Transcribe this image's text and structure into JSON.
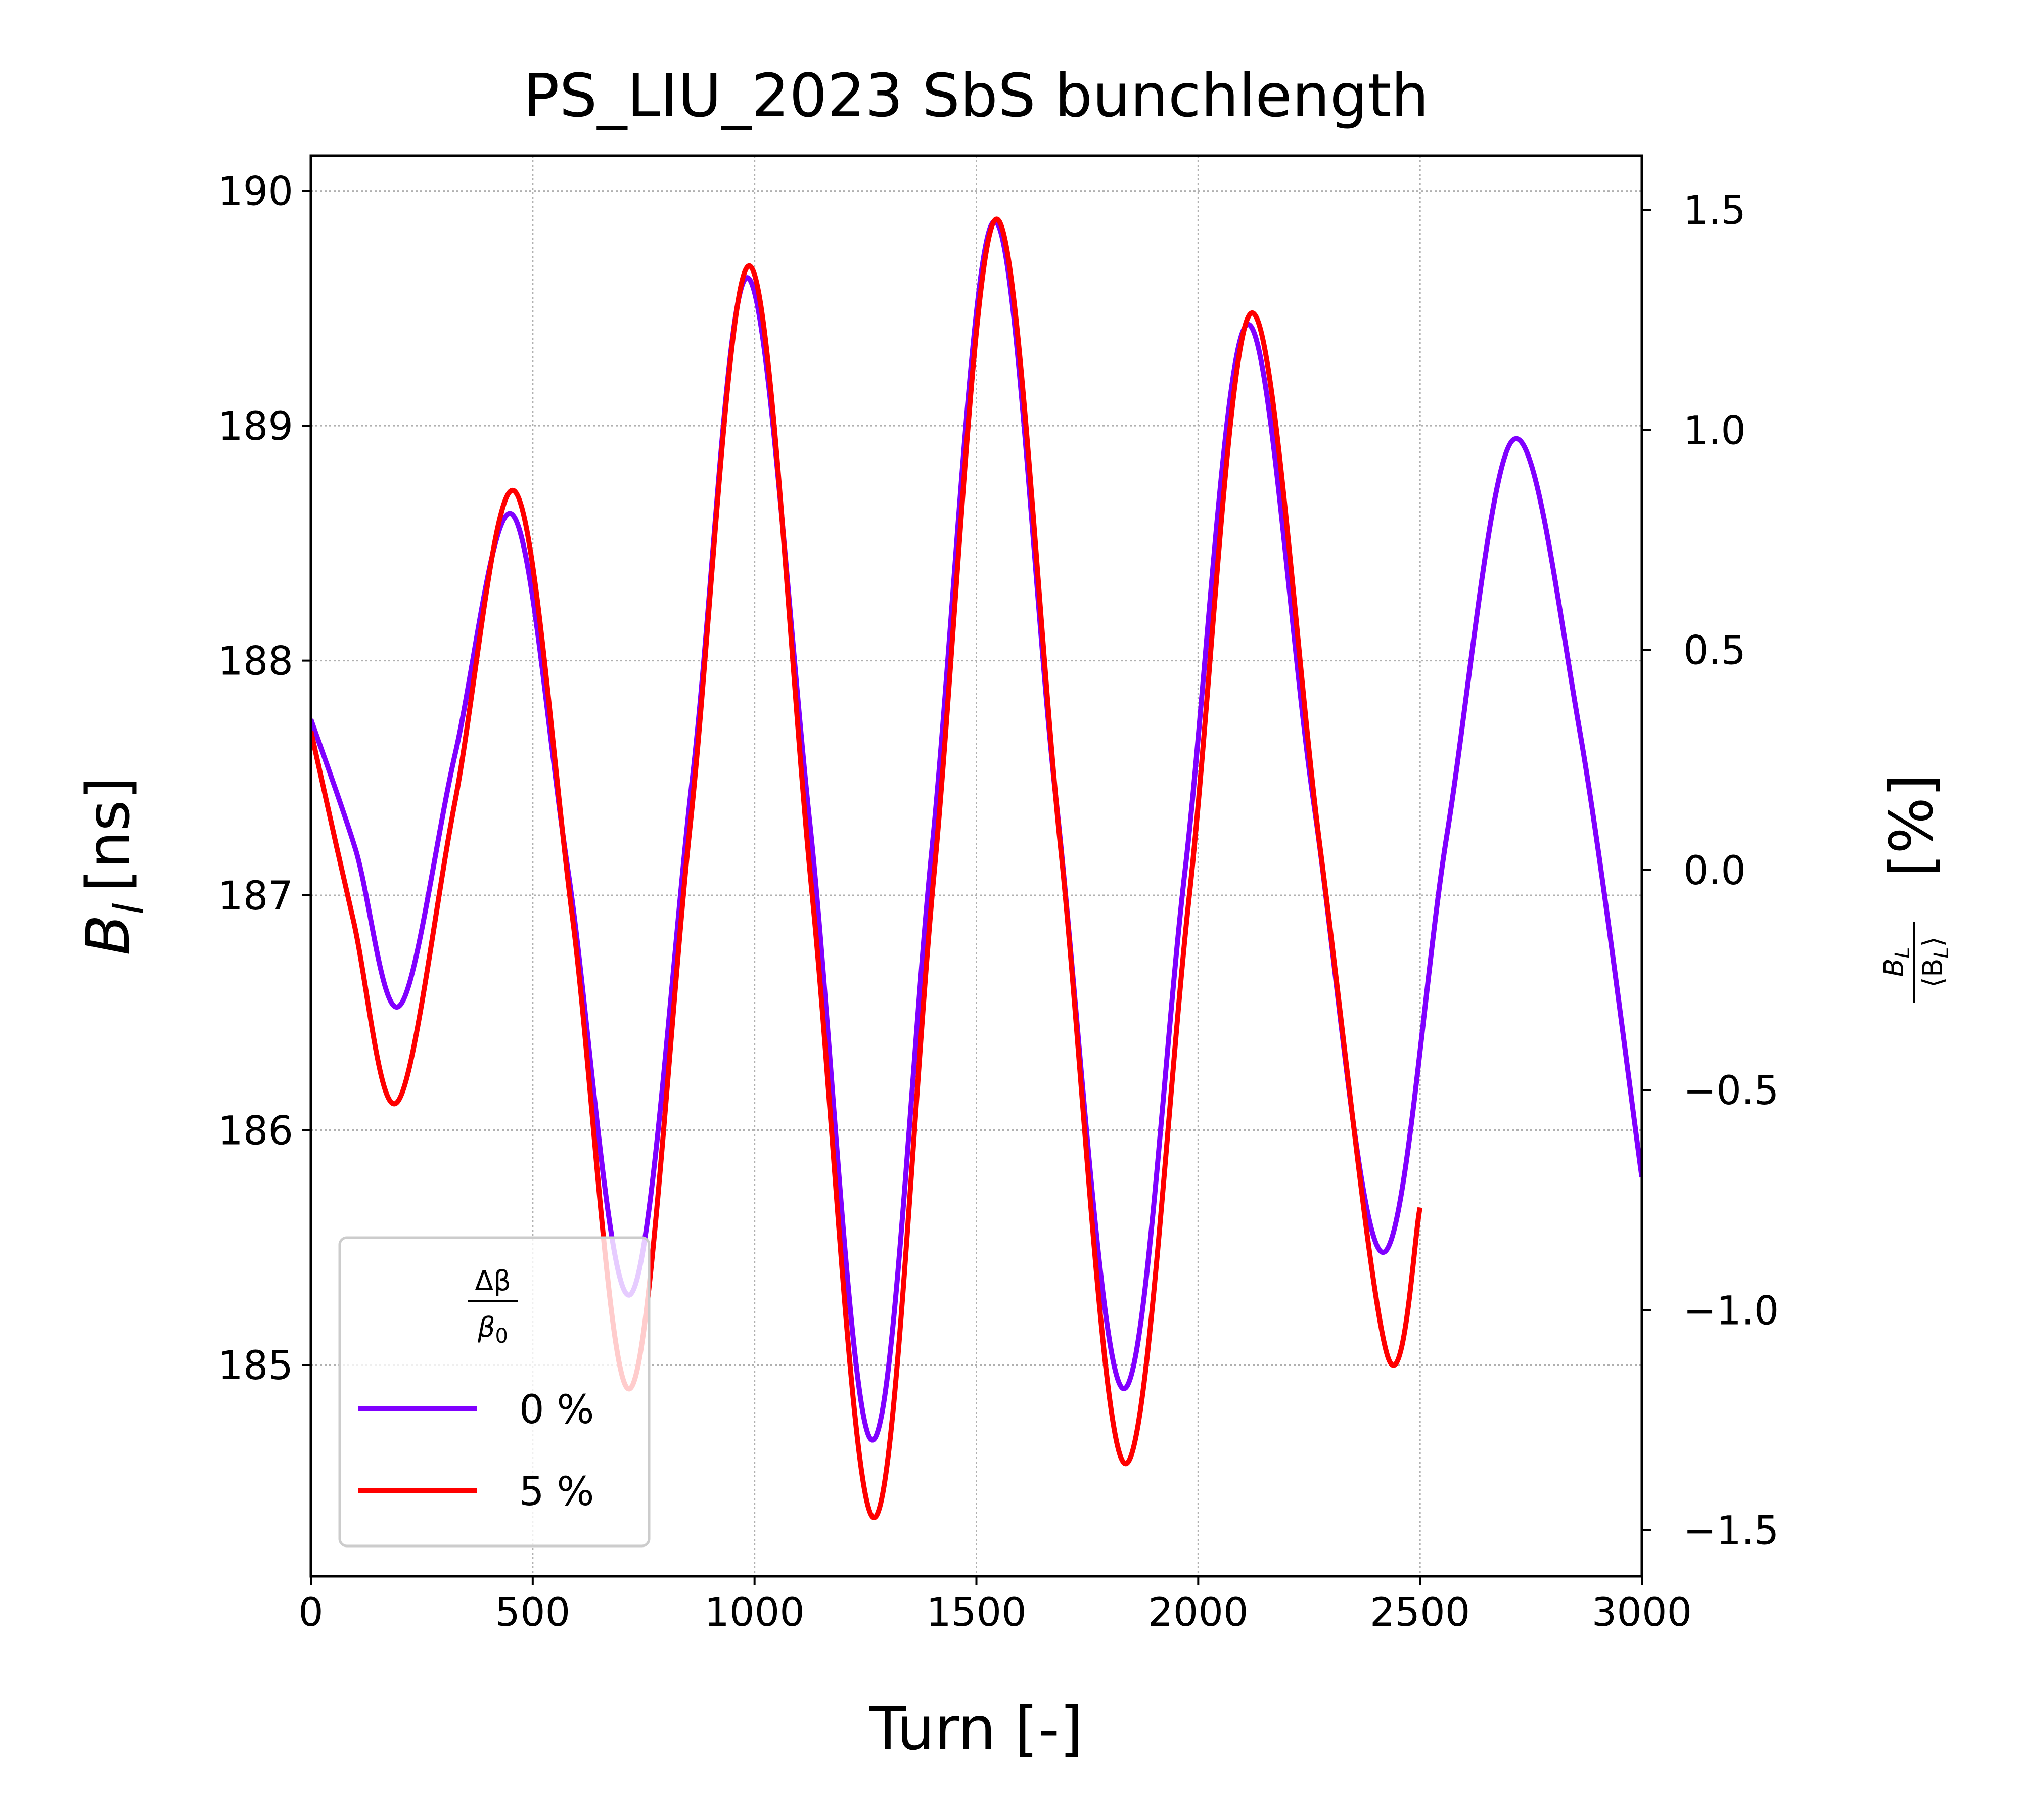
{
  "chart_data": {
    "type": "line",
    "title": "PS_LIU_2023 SbS bunchlength",
    "xlabel": "Turn [-]",
    "ylabel": {
      "main": "B",
      "sub": "l",
      "unit": "[ns]"
    },
    "y2label": {
      "num": "B",
      "num_sub": "L",
      "den": "⟨B",
      "den_sub": "L",
      "den_close": "⟩",
      "unit": "[%]"
    },
    "xlim": [
      0,
      3000
    ],
    "ylim": [
      184.1,
      190.15
    ],
    "y2lim": [
      -1.605,
      1.623
    ],
    "xticks": [
      0,
      500,
      1000,
      1500,
      2000,
      2500,
      3000
    ],
    "yticks": [
      185,
      186,
      187,
      188,
      189,
      190
    ],
    "y2ticks": [
      -1.5,
      -1.0,
      -0.5,
      0.0,
      0.5,
      1.0,
      1.5
    ],
    "y2ticklabels": [
      "−1.5",
      "−1.0",
      "−0.5",
      "0.0",
      "0.5",
      "1.0",
      "1.5"
    ],
    "grid": true,
    "legend": {
      "placement": "lower-left",
      "title": {
        "num": "Δβ",
        "den": "β",
        "den_sub": "0"
      }
    },
    "series": [
      {
        "name": "0 %",
        "color": "#8000ff",
        "x": [
          0,
          100,
          200,
          325,
          455,
          580,
          720,
          860,
          985,
          1125,
          1265,
          1400,
          1540,
          1680,
          1830,
          1970,
          2110,
          2260,
          2415,
          2560,
          2710,
          2860,
          3000
        ],
        "y": [
          187.75,
          187.2,
          186.53,
          187.6,
          188.62,
          187.1,
          185.3,
          187.5,
          189.63,
          187.3,
          184.68,
          187.2,
          189.87,
          187.4,
          184.9,
          187.1,
          189.43,
          187.4,
          185.48,
          187.25,
          188.94,
          187.7,
          185.8
        ]
      },
      {
        "name": "5 %",
        "color": "#ff0000",
        "x": [
          0,
          95,
          195,
          325,
          460,
          590,
          720,
          855,
          990,
          1130,
          1270,
          1405,
          1545,
          1690,
          1835,
          1980,
          2120,
          2275,
          2425,
          2500
        ],
        "y": [
          187.7,
          186.9,
          186.12,
          187.4,
          188.72,
          186.9,
          184.9,
          187.3,
          189.68,
          187.0,
          184.35,
          187.1,
          189.88,
          187.2,
          184.58,
          187.0,
          189.48,
          187.2,
          185.05,
          185.67
        ]
      }
    ]
  }
}
